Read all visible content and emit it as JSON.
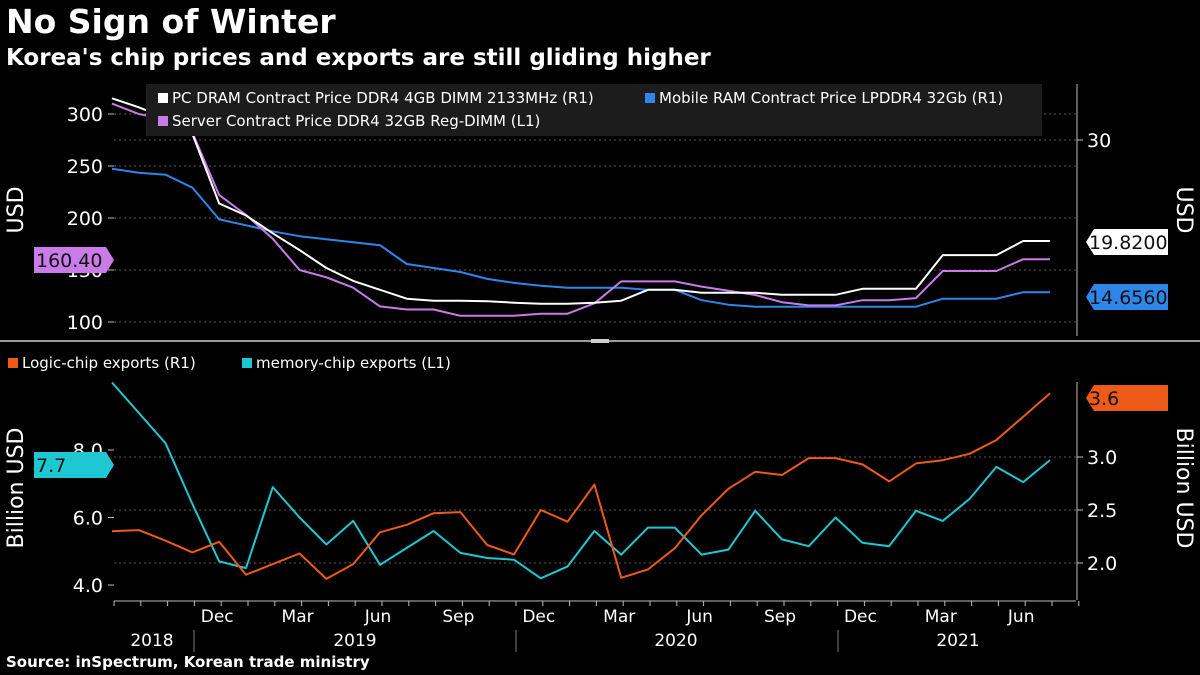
{
  "title": "No Sign of Winter",
  "subtitle": "Korea's chip prices and exports are still gliding higher",
  "source": "Source: inSpectrum, Korean trade ministry",
  "colors": {
    "background": "#000000",
    "pc_dram": "#ffffff",
    "mobile_ram": "#2f86ea",
    "server": "#c97be8",
    "logic": "#ee5a17",
    "memory": "#1ec8d2",
    "grid": "#5a5a5a"
  },
  "chart_data": [
    {
      "type": "line",
      "ylabel_left": "USD",
      "ylabel_right": "USD",
      "ylim_left": [
        95,
        318
      ],
      "ylim_right": [
        13.05,
        34.2
      ],
      "yticks_left": [
        "100",
        "150",
        "200",
        "250",
        "300"
      ],
      "yticks_right": [
        "30"
      ],
      "x": [
        "2018-08",
        "2018-09",
        "2018-10",
        "2018-11",
        "2018-12",
        "2019-01",
        "2019-02",
        "2019-03",
        "2019-04",
        "2019-05",
        "2019-06",
        "2019-07",
        "2019-08",
        "2019-09",
        "2019-10",
        "2019-11",
        "2019-12",
        "2020-01",
        "2020-02",
        "2020-03",
        "2020-04",
        "2020-05",
        "2020-06",
        "2020-07",
        "2020-08",
        "2020-09",
        "2020-10",
        "2020-11",
        "2020-12",
        "2021-01",
        "2021-02",
        "2021-03",
        "2021-04",
        "2021-05",
        "2021-06",
        "2021-07",
        "2021-08"
      ],
      "series": [
        {
          "name": "PC DRAM Contract Price DDR4 4GB DIMM 2133MHz (R1)",
          "axis": "right",
          "color": "#ffffff",
          "values": [
            34.2,
            33.3,
            32.2,
            30.6,
            23.6,
            22.4,
            20.6,
            18.9,
            17.1,
            15.8,
            14.9,
            14.0,
            13.8,
            13.8,
            13.75,
            13.6,
            13.5,
            13.5,
            13.6,
            13.8,
            14.9,
            14.9,
            14.6,
            14.6,
            14.6,
            14.4,
            14.4,
            14.4,
            15.0,
            15.0,
            15.0,
            18.4,
            18.4,
            18.4,
            19.82,
            19.82,
            null
          ]
        },
        {
          "name": "Mobile RAM Contract Price LPDDR4 32Gb (R1)",
          "axis": "right",
          "color": "#2f86ea",
          "values": [
            27.1,
            26.7,
            26.5,
            25.2,
            22.0,
            21.4,
            20.8,
            20.3,
            20.0,
            19.7,
            19.4,
            17.5,
            17.1,
            16.7,
            16.0,
            15.6,
            15.3,
            15.1,
            15.1,
            15.1,
            14.9,
            14.9,
            13.85,
            13.4,
            13.2,
            13.2,
            13.2,
            13.2,
            13.2,
            13.2,
            13.2,
            14.0,
            14.0,
            14.0,
            14.656,
            14.656,
            null
          ]
        },
        {
          "name": "Server Contract Price DDR4 32GB Reg-DIMM (L1)",
          "axis": "left",
          "color": "#c97be8",
          "values": [
            310,
            300,
            295,
            282,
            222,
            203,
            180,
            150,
            143,
            133,
            115,
            112,
            112,
            106,
            106,
            106,
            108,
            108,
            118,
            139,
            139,
            139,
            134,
            130,
            126,
            119,
            116,
            116,
            121,
            121,
            123,
            149,
            149,
            149,
            160.4,
            160.4,
            null
          ]
        }
      ]
    },
    {
      "type": "line",
      "ylabel_left": "Billion USD",
      "ylabel_right": "Billion USD",
      "ylim_left": [
        3.8,
        10.75
      ],
      "ylim_right": [
        1.8,
        3.73
      ],
      "yticks_left": [
        "4.0",
        "6.0",
        "8.0"
      ],
      "yticks_right": [
        "2.0",
        "2.5",
        "3.0"
      ],
      "xtick_months": [
        "Dec",
        "Mar",
        "Jun",
        "Sep",
        "Dec",
        "Mar",
        "Jun",
        "Sep",
        "Dec",
        "Mar",
        "Jun"
      ],
      "xtick_years": [
        "2018",
        "2019",
        "2020",
        "2021"
      ],
      "x": [
        "2018-08",
        "2018-09",
        "2018-10",
        "2018-11",
        "2018-12",
        "2019-01",
        "2019-02",
        "2019-03",
        "2019-04",
        "2019-05",
        "2019-06",
        "2019-07",
        "2019-08",
        "2019-09",
        "2019-10",
        "2019-11",
        "2019-12",
        "2020-01",
        "2020-02",
        "2020-03",
        "2020-04",
        "2020-05",
        "2020-06",
        "2020-07",
        "2020-08",
        "2020-09",
        "2020-10",
        "2020-11",
        "2020-12",
        "2021-01",
        "2021-02",
        "2021-03",
        "2021-04",
        "2021-05",
        "2021-06",
        "2021-07",
        "2021-08"
      ],
      "series": [
        {
          "name": "Logic-chip exports (R1)",
          "axis": "right",
          "color": "#ee5a17",
          "values": [
            2.3,
            2.31,
            2.21,
            2.1,
            2.2,
            1.89,
            1.99,
            2.09,
            1.85,
            1.99,
            2.29,
            2.36,
            2.47,
            2.48,
            2.17,
            2.08,
            2.5,
            2.39,
            2.74,
            1.86,
            1.94,
            2.14,
            2.45,
            2.7,
            2.86,
            2.83,
            2.99,
            2.99,
            2.93,
            2.77,
            2.94,
            2.97,
            3.03,
            3.16,
            3.38,
            3.6,
            null
          ]
        },
        {
          "name": "memory-chip exports (L1)",
          "axis": "left",
          "color": "#1ec8d2",
          "values": [
            10.0,
            9.1,
            8.2,
            6.4,
            4.7,
            4.5,
            6.9,
            6.0,
            5.2,
            5.9,
            4.6,
            5.1,
            5.6,
            4.95,
            4.8,
            4.75,
            4.2,
            4.55,
            5.6,
            4.9,
            5.7,
            5.7,
            4.9,
            5.05,
            6.2,
            5.35,
            5.15,
            6.0,
            5.25,
            5.15,
            6.2,
            5.9,
            6.55,
            7.5,
            7.05,
            7.7,
            null
          ]
        }
      ],
      "last_value_labels": {
        "logic": "3.6",
        "memory": "7.7"
      }
    }
  ],
  "top_last_value_labels": {
    "server": "160.40",
    "pc_dram": "19.8200",
    "mobile_ram": "14.6560"
  },
  "legends": {
    "top": [
      {
        "label": "PC DRAM Contract Price DDR4 4GB DIMM 2133MHz (R1)",
        "color": "#ffffff"
      },
      {
        "label": "Mobile RAM Contract Price LPDDR4 32Gb (R1)",
        "color": "#2f86ea"
      },
      {
        "label": "Server Contract Price DDR4 32GB Reg-DIMM (L1)",
        "color": "#c97be8"
      }
    ],
    "bottom": [
      {
        "label": "Logic-chip exports (R1)",
        "color": "#ee5a17"
      },
      {
        "label": "memory-chip exports (L1)",
        "color": "#1ec8d2"
      }
    ]
  }
}
